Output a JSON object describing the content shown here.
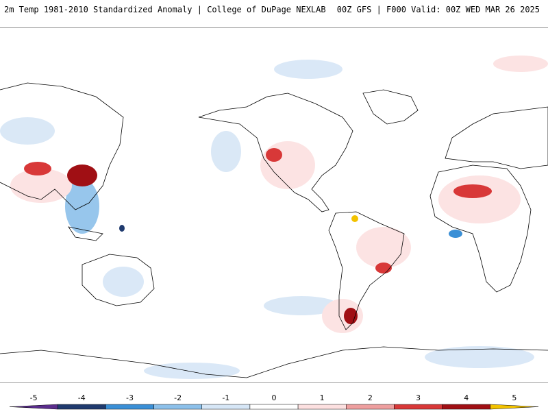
{
  "header": {
    "title_left": "2m Temp 1981-2010 Standardized Anomaly | College of DuPage NEXLAB",
    "title_right": "00Z GFS | F000 Valid: 00Z WED MAR 26 2025"
  },
  "colorbar": {
    "tick_labels": [
      "-5",
      "-4",
      "-3",
      "-2",
      "-1",
      "0",
      "1",
      "2",
      "3",
      "4",
      "5"
    ],
    "colors": [
      "#5a2d8c",
      "#1f3a6e",
      "#3a8fd6",
      "#8cc0ea",
      "#d6e6f6",
      "#ffffff",
      "#fce0e0",
      "#ee9f9f",
      "#d83838",
      "#a00f14",
      "#f2c200"
    ]
  },
  "map": {
    "projection": "global, Pacific-centered",
    "land_color": "#ffffff",
    "coastline_color": "#000000",
    "warm_anomaly_color": "#d83838",
    "cold_anomaly_color": "#3a8fd6"
  }
}
